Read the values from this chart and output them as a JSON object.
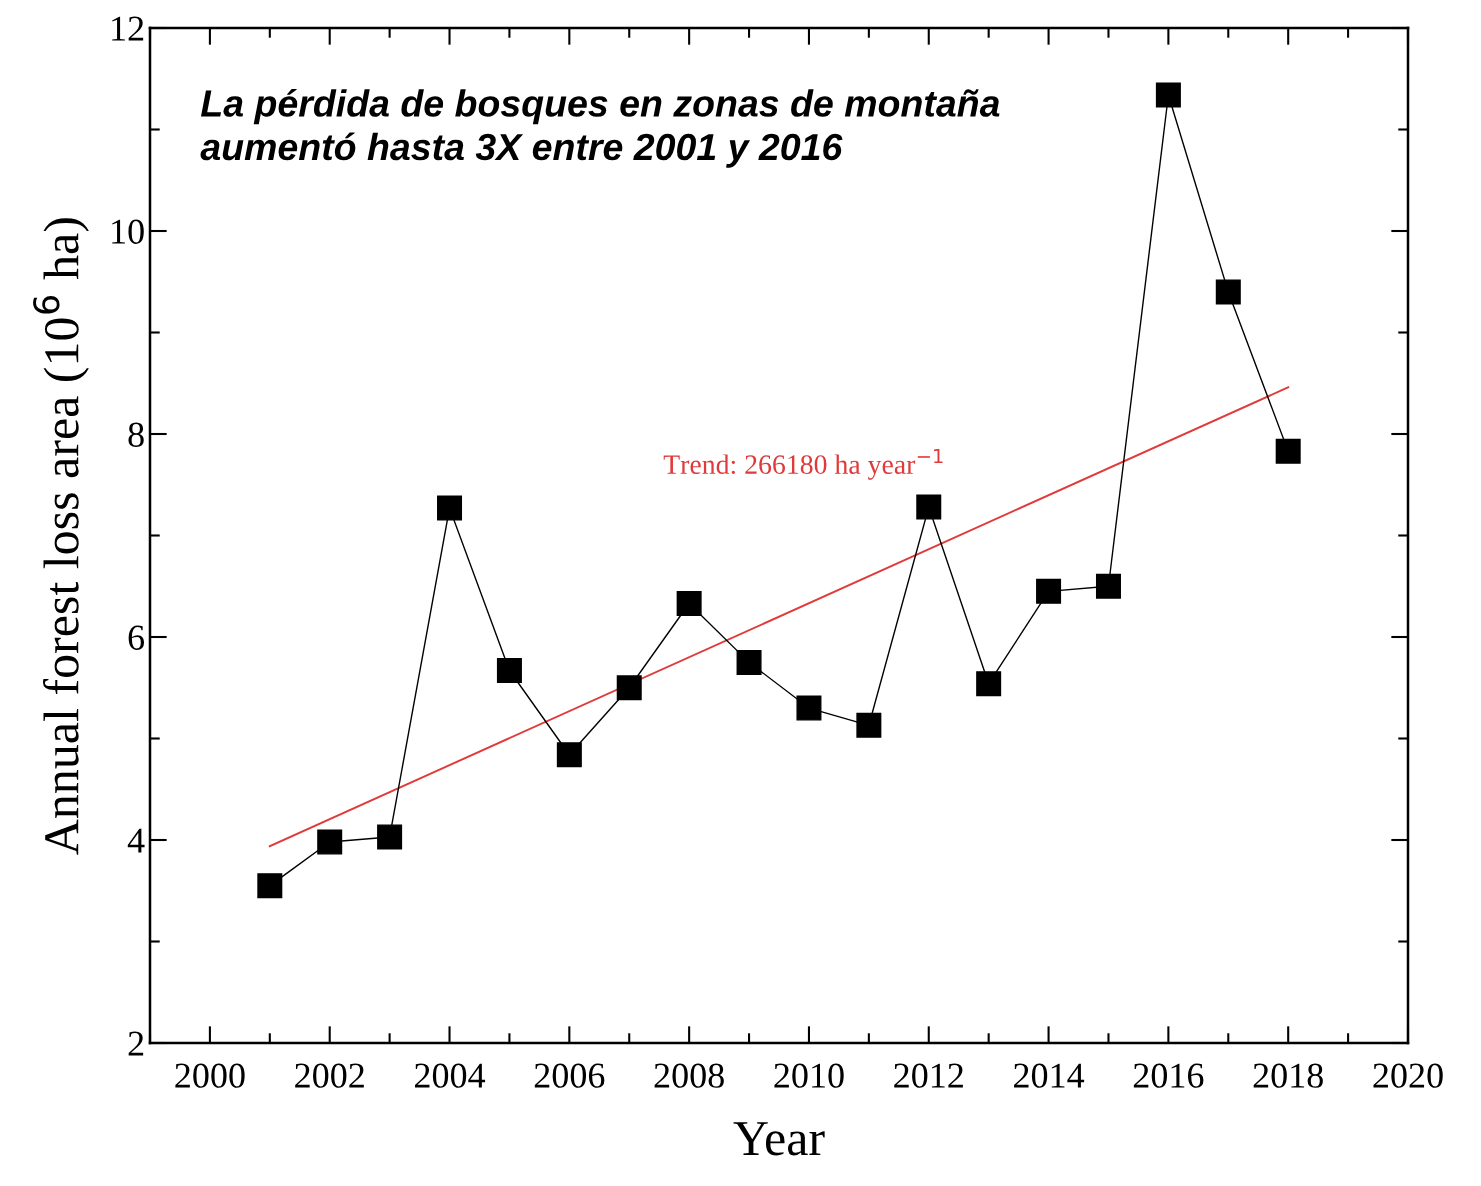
{
  "chart_data": {
    "type": "line",
    "xlabel": "Year",
    "ylabel": "Annual forest loss area (10$^{6}$ ha)",
    "x": [
      2001,
      2002,
      2003,
      2004,
      2005,
      2006,
      2007,
      2008,
      2009,
      2010,
      2011,
      2012,
      2013,
      2014,
      2015,
      2016,
      2017,
      2018
    ],
    "series": [
      {
        "color": "#000000",
        "marker": "square",
        "line_style": "solid",
        "values": [
          3.55,
          3.98,
          4.03,
          7.27,
          5.67,
          4.84,
          5.5,
          6.33,
          5.75,
          5.3,
          5.13,
          7.28,
          5.54,
          6.45,
          6.5,
          11.34,
          9.4,
          7.83
        ]
      },
      {
        "type": "line",
        "name": "Trend: 266180 ha year$^{−1}$",
        "color": "#e03a3a",
        "marker": "none",
        "line_style": "solid",
        "x": [
          2001,
          2018
        ],
        "values": [
          3.94,
          8.46
        ]
      }
    ],
    "annotations": [
      "La pérdida de bosques en zonas de montaña\naumentó hasta 3X entre 2001 y 2016"
    ],
    "xlim": [
      1999,
      2020
    ],
    "xticks": [
      2000,
      2002,
      2004,
      2006,
      2008,
      2010,
      2012,
      2014,
      2016,
      2018,
      2020
    ],
    "ylim": [
      2,
      12
    ],
    "yticks": [
      2,
      4,
      6,
      8,
      10,
      12
    ],
    "grid": false,
    "legend": false
  }
}
